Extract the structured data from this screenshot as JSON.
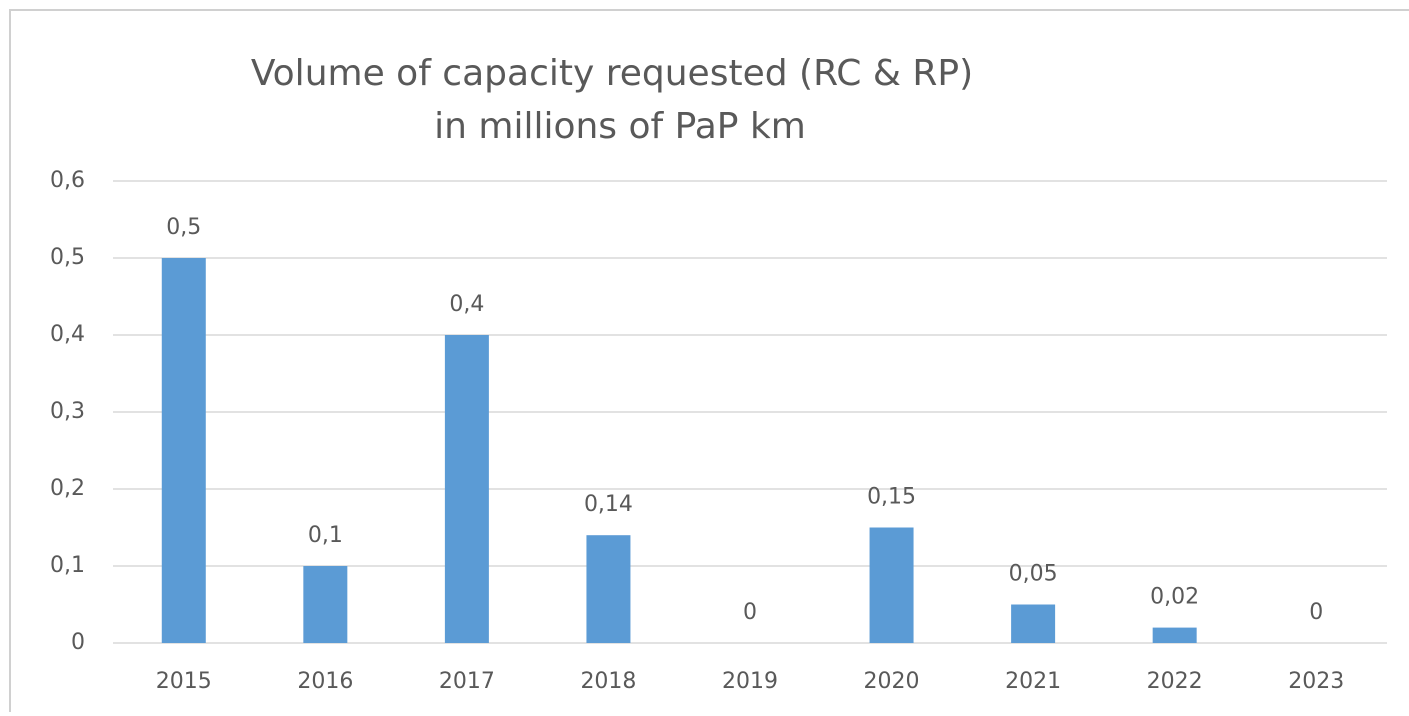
{
  "chart_data": {
    "type": "bar",
    "title": "Volume of capacity requested (RC & RP)",
    "subtitle": "in millions of PaP km",
    "categories": [
      "2015",
      "2016",
      "2017",
      "2018",
      "2019",
      "2020",
      "2021",
      "2022",
      "2023"
    ],
    "values": [
      0.5,
      0.1,
      0.4,
      0.14,
      0,
      0.15,
      0.05,
      0.02,
      0
    ],
    "value_labels": [
      "0,5",
      "0,1",
      "0,4",
      "0,14",
      "0",
      "0,15",
      "0,05",
      "0,02",
      "0"
    ],
    "color": "#5b9bd5",
    "ylim": [
      0,
      0.6
    ],
    "yticks": [
      0,
      {
        "value": 0.1,
        "label": "0,1"
      },
      {
        "value": 0.2,
        "label": "0,2"
      },
      {
        "value": 0.3,
        "label": "0,3"
      },
      {
        "value": 0.4,
        "label": "0,4"
      },
      {
        "value": 0.5,
        "label": "0,5"
      },
      {
        "value": 0.6,
        "label": "0,6"
      }
    ],
    "grid": true
  }
}
